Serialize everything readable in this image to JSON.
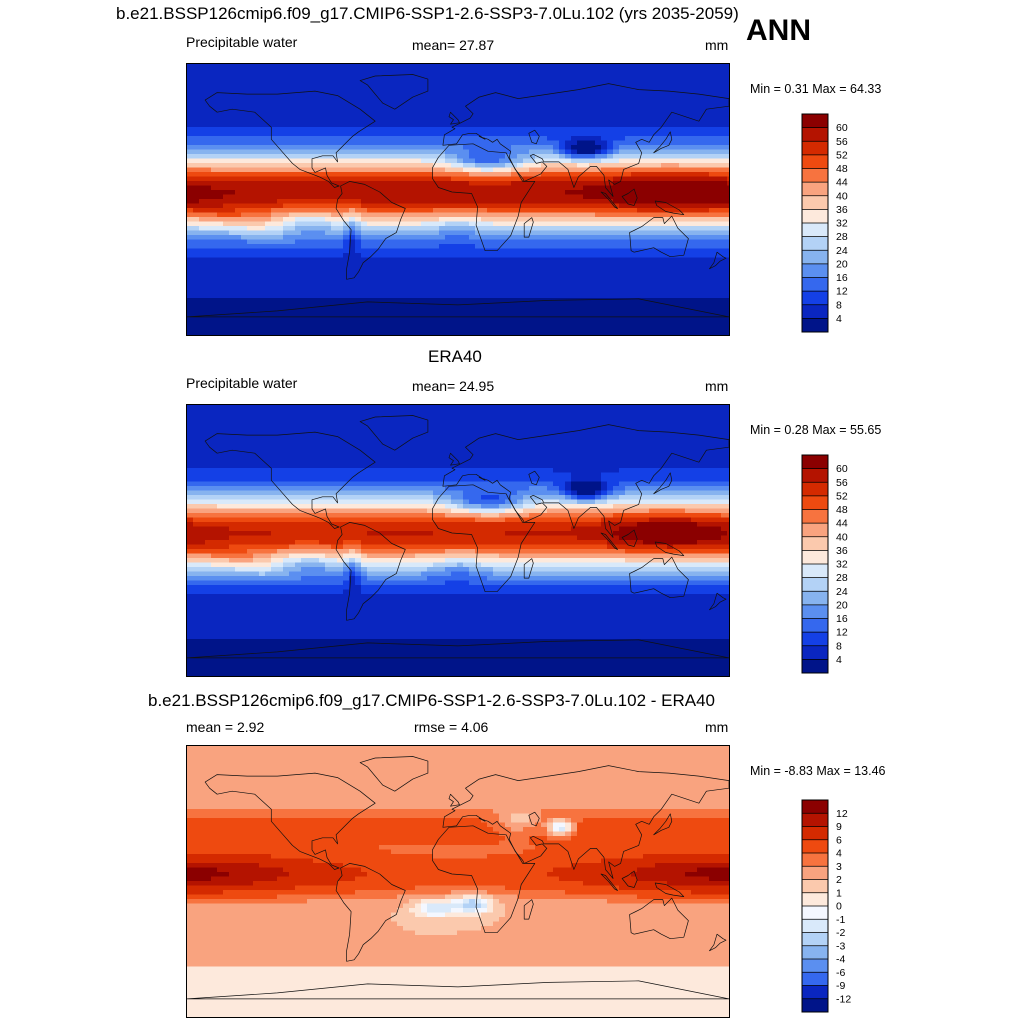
{
  "season": "ANN",
  "panels": [
    {
      "title": "b.e21.BSSP126cmip6.f09_g17.CMIP6-SSP1-2.6-SSP3-7.0Lu.102 (yrs 2035-2059)",
      "left": "Precipitable water",
      "center": "mean=  27.87",
      "right": "mm",
      "minmax": "Min =   0.31 Max =  64.33"
    },
    {
      "title": "ERA40",
      "left": "Precipitable water",
      "center": "mean=  24.95",
      "right": "mm",
      "minmax": "Min =   0.28 Max =  55.65"
    },
    {
      "title": "b.e21.BSSP126cmip6.f09_g17.CMIP6-SSP1-2.6-SSP3-7.0Lu.102 - ERA40",
      "left": "mean =   2.92",
      "center": "rmse =   4.06",
      "right": "mm",
      "minmax": "Min =  -8.83 Max =  13.46"
    }
  ],
  "colorbars": {
    "absolute": {
      "labels": [
        "60",
        "56",
        "52",
        "48",
        "44",
        "40",
        "36",
        "32",
        "28",
        "24",
        "20",
        "16",
        "12",
        "8",
        "4"
      ],
      "colors": [
        "#8b0000",
        "#b41300",
        "#d42a00",
        "#ee4a10",
        "#f7733f",
        "#f9a37f",
        "#fbc9ad",
        "#fde9dc",
        "#d9e9fa",
        "#b3d2f6",
        "#87b3ef",
        "#5b8ff0",
        "#3568ee",
        "#1440e6",
        "#0a26c0",
        "#001489"
      ]
    },
    "difference": {
      "labels": [
        "12",
        "9",
        "6",
        "4",
        "3",
        "2",
        "1",
        "0",
        "-1",
        "-2",
        "-3",
        "-4",
        "-6",
        "-9",
        "-12"
      ],
      "colors": [
        "#8b0000",
        "#b41300",
        "#d42a00",
        "#ee4a10",
        "#f7733f",
        "#f9a37f",
        "#fbc9ad",
        "#fde9dc",
        "#f4f7ff",
        "#d9e9fa",
        "#b3d2f6",
        "#87b3ef",
        "#5b8ff0",
        "#3568ee",
        "#0a26c0",
        "#001489"
      ]
    }
  },
  "chart_data": [
    {
      "type": "heatmap",
      "title": "b.e21.BSSP126cmip6.f09_g17.CMIP6-SSP1-2.6-SSP3-7.0Lu.102 (yrs 2035-2059)",
      "variable": "Precipitable water",
      "units": "mm",
      "mean": 27.87,
      "min": 0.31,
      "max": 64.33,
      "levels": [
        4,
        8,
        12,
        16,
        20,
        24,
        28,
        32,
        36,
        40,
        44,
        48,
        52,
        56,
        60
      ],
      "region": "global"
    },
    {
      "type": "heatmap",
      "title": "ERA40",
      "variable": "Precipitable water",
      "units": "mm",
      "mean": 24.95,
      "min": 0.28,
      "max": 55.65,
      "levels": [
        4,
        8,
        12,
        16,
        20,
        24,
        28,
        32,
        36,
        40,
        44,
        48,
        52,
        56,
        60
      ],
      "region": "global"
    },
    {
      "type": "heatmap",
      "title": "b.e21.BSSP126cmip6.f09_g17.CMIP6-SSP1-2.6-SSP3-7.0Lu.102 - ERA40",
      "units": "mm",
      "mean": 2.92,
      "rmse": 4.06,
      "min": -8.83,
      "max": 13.46,
      "levels": [
        -12,
        -9,
        -6,
        -4,
        -3,
        -2,
        -1,
        0,
        1,
        2,
        3,
        4,
        6,
        9,
        12
      ],
      "region": "global"
    }
  ]
}
